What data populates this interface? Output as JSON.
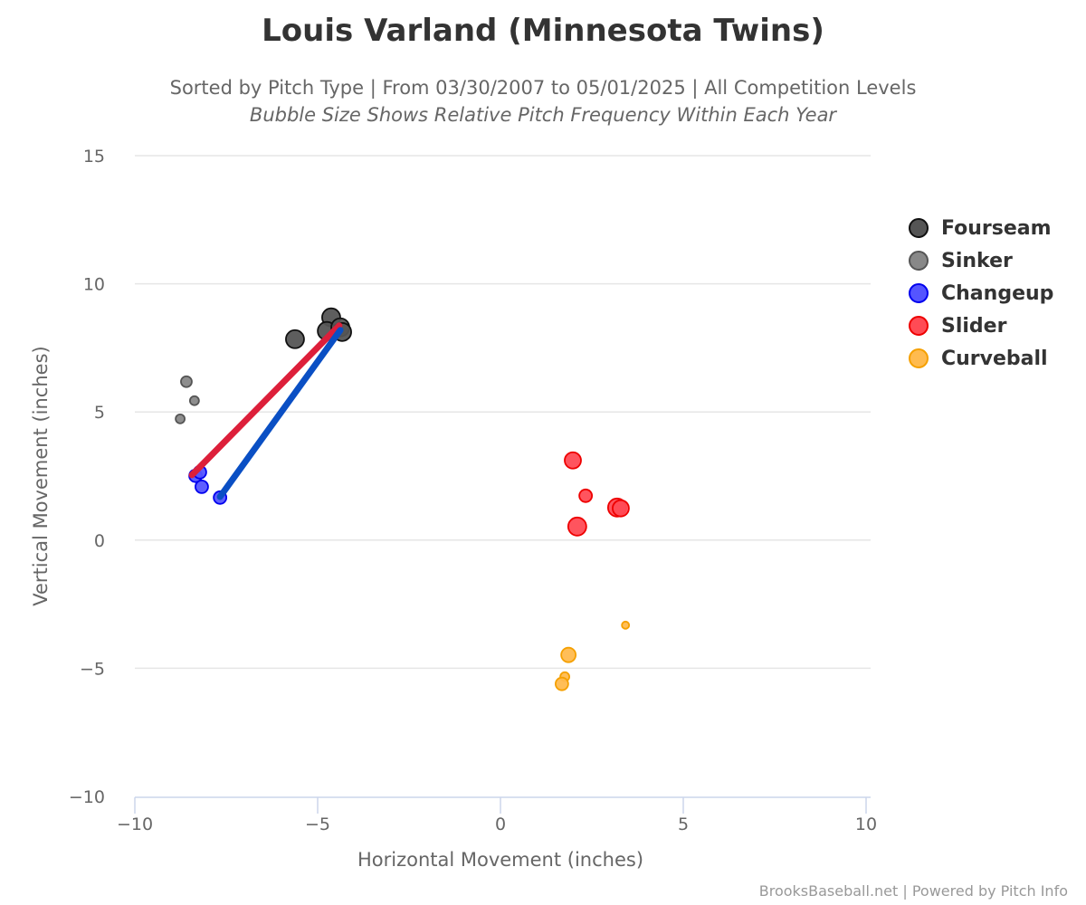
{
  "header": {
    "title": "Louis Varland (Minnesota Twins)",
    "subtitle_line1": "Sorted by Pitch Type | From 03/30/2007 to 05/01/2025 | All Competition Levels",
    "subtitle_line2": "Bubble Size Shows Relative Pitch Frequency Within Each Year"
  },
  "axes": {
    "xlabel": "Horizontal Movement (inches)",
    "ylabel": "Vertical Movement (inches)",
    "x_ticks": [
      "−10",
      "−5",
      "0",
      "5",
      "10"
    ],
    "y_ticks": [
      "15",
      "10",
      "5",
      "0",
      "−5",
      "−10"
    ]
  },
  "legend": [
    {
      "label": "Fourseam",
      "fill": "#555555",
      "stroke": "#111111"
    },
    {
      "label": "Sinker",
      "fill": "#888888",
      "stroke": "#555555"
    },
    {
      "label": "Changeup",
      "fill": "#5555ff",
      "stroke": "#0000ee"
    },
    {
      "label": "Slider",
      "fill": "#ff4b55",
      "stroke": "#ee0000"
    },
    {
      "label": "Curveball",
      "fill": "#ffbb4f",
      "stroke": "#f5a000"
    }
  ],
  "credits": "BrooksBaseball.net | Powered by Pitch Info",
  "chart_data": {
    "type": "scatter",
    "title": "Louis Varland (Minnesota Twins)",
    "subtitle": "Sorted by Pitch Type | From 03/30/2007 to 05/01/2025 | All Competition Levels",
    "annotation": "Bubble Size Shows Relative Pitch Frequency Within Each Year",
    "xlabel": "Horizontal Movement (inches)",
    "ylabel": "Vertical Movement (inches)",
    "xlim": [
      -10,
      10
    ],
    "ylim": [
      -10,
      15
    ],
    "x_ticks": [
      -10,
      -5,
      0,
      5,
      10
    ],
    "y_ticks": [
      -10,
      -5,
      0,
      5,
      10,
      15
    ],
    "grid": "horizontal",
    "legend_position": "right",
    "series": [
      {
        "name": "Fourseam",
        "color": "#555555",
        "points": [
          {
            "x": -5.62,
            "y": 7.84,
            "r": 10
          },
          {
            "x": -4.63,
            "y": 8.69,
            "r": 10
          },
          {
            "x": -4.75,
            "y": 8.16,
            "r": 10
          },
          {
            "x": -4.38,
            "y": 8.3,
            "r": 10
          },
          {
            "x": -4.33,
            "y": 8.12,
            "r": 10
          }
        ]
      },
      {
        "name": "Sinker",
        "color": "#888888",
        "points": [
          {
            "x": -8.59,
            "y": 6.18,
            "r": 6
          },
          {
            "x": -8.37,
            "y": 5.44,
            "r": 5
          },
          {
            "x": -8.76,
            "y": 4.73,
            "r": 5
          }
        ]
      },
      {
        "name": "Changeup",
        "color": "#5555ff",
        "points": [
          {
            "x": -8.34,
            "y": 2.51,
            "r": 7
          },
          {
            "x": -8.22,
            "y": 2.65,
            "r": 7
          },
          {
            "x": -8.17,
            "y": 2.08,
            "r": 7
          },
          {
            "x": -7.67,
            "y": 1.66,
            "r": 7
          }
        ]
      },
      {
        "name": "Slider",
        "color": "#ff4b55",
        "points": [
          {
            "x": 1.98,
            "y": 3.11,
            "r": 9
          },
          {
            "x": 2.33,
            "y": 1.73,
            "r": 7
          },
          {
            "x": 3.19,
            "y": 1.27,
            "r": 10
          },
          {
            "x": 3.29,
            "y": 1.24,
            "r": 9
          },
          {
            "x": 2.1,
            "y": 0.53,
            "r": 10
          }
        ]
      },
      {
        "name": "Curveball",
        "color": "#ffbb4f",
        "points": [
          {
            "x": 3.42,
            "y": -3.32,
            "r": 4
          },
          {
            "x": 1.86,
            "y": -4.48,
            "r": 8
          },
          {
            "x": 1.76,
            "y": -5.33,
            "r": 5
          },
          {
            "x": 1.68,
            "y": -5.61,
            "r": 7
          }
        ]
      }
    ],
    "trend_lines": [
      {
        "color": "#dd1f3a",
        "from": {
          "x": -8.44,
          "y": 2.54
        },
        "to": {
          "x": -4.41,
          "y": 8.37
        }
      },
      {
        "color": "#0a4fc4",
        "from": {
          "x": -7.67,
          "y": 1.69
        },
        "to": {
          "x": -4.38,
          "y": 8.19
        }
      }
    ]
  }
}
